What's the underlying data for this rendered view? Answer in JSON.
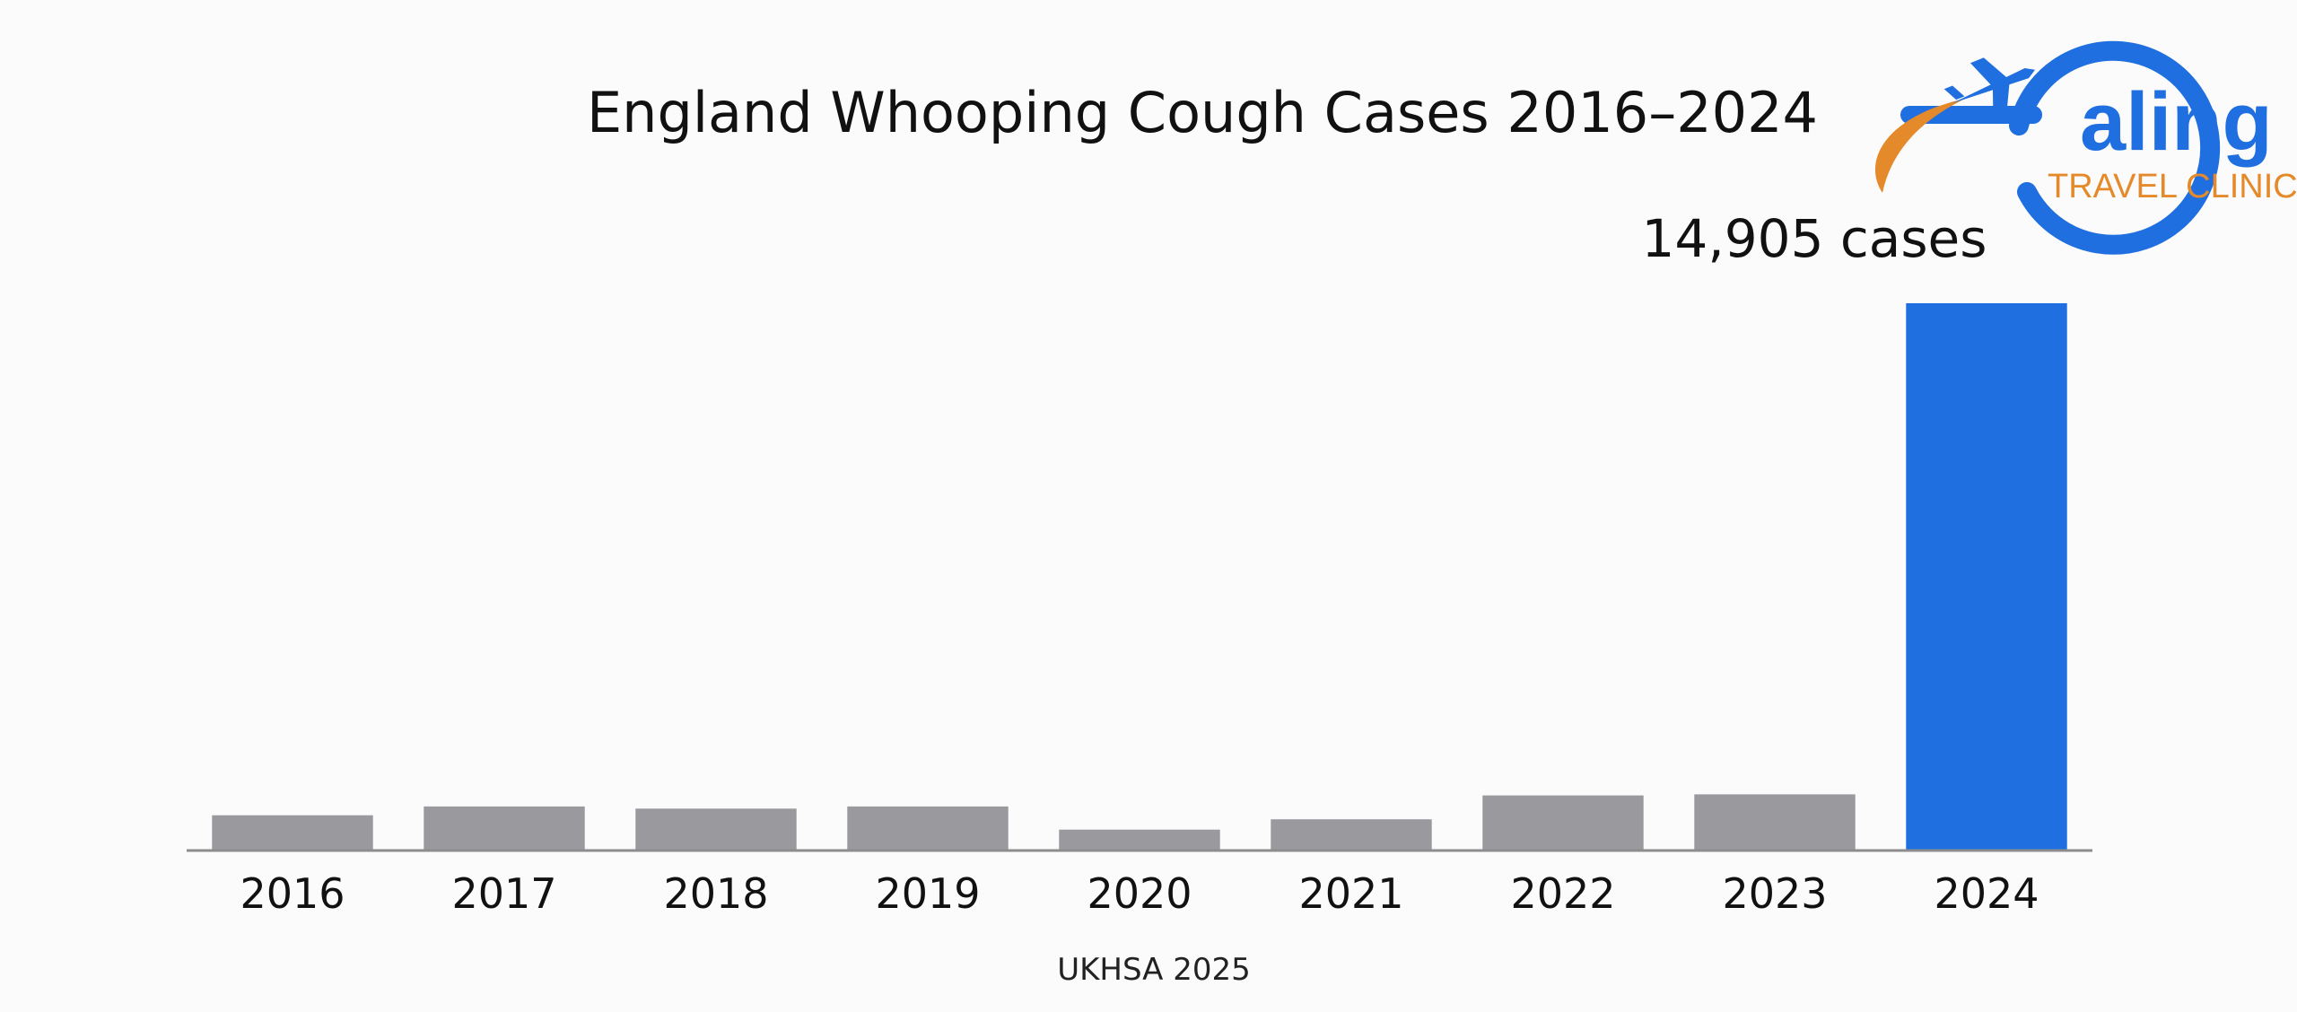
{
  "chart_data": {
    "type": "bar",
    "title": "England Whooping Cough Cases 2016–2024",
    "categories": [
      "2016",
      "2017",
      "2018",
      "2019",
      "2020",
      "2021",
      "2022",
      "2023",
      "2024"
    ],
    "values": [
      960,
      1200,
      1140,
      1200,
      570,
      850,
      1500,
      1530,
      14905
    ],
    "colors": [
      "#9a999e",
      "#9a999e",
      "#9a999e",
      "#9a999e",
      "#9a999e",
      "#9a999e",
      "#9a999e",
      "#9a999e",
      "#1f6fe0"
    ],
    "data_labels": [
      {
        "category": "2024",
        "text": "14,905 cases"
      }
    ],
    "ylim": [
      0,
      14905
    ],
    "xlabel": "",
    "ylabel": "",
    "grid": false,
    "source": "UKHSA 2025"
  },
  "logo": {
    "word": "aling",
    "subtitle": "TRAVEL CLINIC",
    "icon": "airplane-icon",
    "colors": {
      "blue": "#1f6fe0",
      "orange": "#e58a2a"
    }
  }
}
